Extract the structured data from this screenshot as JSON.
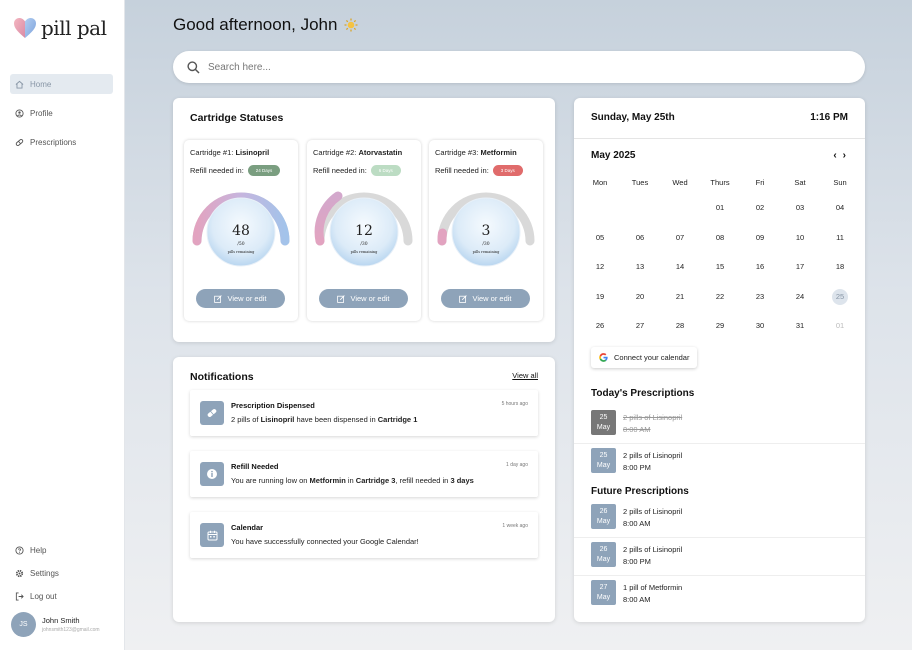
{
  "app": {
    "name": "pill pal"
  },
  "sidebar": {
    "items": [
      {
        "label": "Home",
        "icon": "home-icon"
      },
      {
        "label": "Profile",
        "icon": "profile-icon"
      },
      {
        "label": "Prescriptions",
        "icon": "pill-icon"
      }
    ],
    "bottom_items": [
      {
        "label": "Help",
        "icon": "help-icon"
      },
      {
        "label": "Settings",
        "icon": "gear-icon"
      },
      {
        "label": "Log out",
        "icon": "logout-icon"
      }
    ],
    "user": {
      "initials": "JS",
      "name": "John Smith",
      "email": "johnsmith123@gmail.com"
    }
  },
  "header": {
    "greeting": "Good afternoon, John",
    "icon": "sun-icon"
  },
  "search": {
    "placeholder": "Search here..."
  },
  "cartridges": {
    "title": "Cartridge Statuses",
    "items": [
      {
        "prefix": "Cartridge #1:",
        "name": "Lisinopril",
        "refill_label": "Refill needed in:",
        "refill_days": "24 Days",
        "badge_color": "#7a9e80",
        "remaining": "48",
        "total": "/50",
        "caption": "pills remaining",
        "button": "View or edit"
      },
      {
        "prefix": "Cartridge #2:",
        "name": "Atorvastatin",
        "refill_label": "Refill needed in:",
        "refill_days": "6 Days",
        "badge_color": "#bcdcc3",
        "remaining": "12",
        "total": "/30",
        "caption": "pills remaining",
        "button": "View or edit"
      },
      {
        "prefix": "Cartridge #3:",
        "name": "Metformin",
        "refill_label": "Refill needed in:",
        "refill_days": "3 Days",
        "badge_color": "#e06b6b",
        "remaining": "3",
        "total": "/30",
        "caption": "pills remaining",
        "button": "View or edit"
      }
    ]
  },
  "notifications": {
    "title": "Notifications",
    "view_all": "View all",
    "items": [
      {
        "title": "Prescription Dispensed",
        "time": "5 hours ago",
        "icon": "pill-icon",
        "t1": "2 pills of ",
        "b1": "Lisinopril",
        "t2": " have been dispensed in ",
        "b2": "Cartridge 1",
        "t3": "",
        "b3": ""
      },
      {
        "title": "Refill Needed",
        "time": "1 day ago",
        "icon": "info-icon",
        "t1": "You are running low on ",
        "b1": "Metformin",
        "t2": " in ",
        "b2": "Cartridge 3",
        "t3": ", refill needed in ",
        "b3": "3 days"
      },
      {
        "title": "Calendar",
        "time": "1 week ago",
        "icon": "calendar-icon",
        "t1": "You have successfully connected your Google Calendar!",
        "b1": "",
        "t2": "",
        "b2": "",
        "t3": "",
        "b3": ""
      }
    ]
  },
  "calendar": {
    "date": "Sunday, May 25th",
    "time": "1:16 PM",
    "month": "May 2025",
    "prev": "‹",
    "next": "›",
    "weekdays": [
      "Mon",
      "Tues",
      "Wed",
      "Thurs",
      "Fri",
      "Sat",
      "Sun"
    ],
    "days": [
      "",
      "",
      "",
      "01",
      "02",
      "03",
      "04",
      "05",
      "06",
      "07",
      "08",
      "09",
      "10",
      "11",
      "12",
      "13",
      "14",
      "15",
      "16",
      "17",
      "18",
      "19",
      "20",
      "21",
      "22",
      "23",
      "24",
      "25",
      "26",
      "27",
      "28",
      "29",
      "30",
      "31",
      "01"
    ],
    "today": "25",
    "connect_label": "Connect your calendar"
  },
  "todays_prescriptions": {
    "title": "Today's Prescriptions",
    "items": [
      {
        "day": "25",
        "month": "May",
        "name": "2 pills of Lisinopril",
        "time": "8:00 AM",
        "done": true
      },
      {
        "day": "25",
        "month": "May",
        "name": "2 pills of Lisinopril",
        "time": "8:00 PM",
        "done": false
      }
    ]
  },
  "future_prescriptions": {
    "title": "Future Prescriptions",
    "items": [
      {
        "day": "26",
        "month": "May",
        "name": "2 pills of Lisinopril",
        "time": "8:00 AM"
      },
      {
        "day": "26",
        "month": "May",
        "name": "2 pills of Lisinopril",
        "time": "8:00 PM"
      },
      {
        "day": "27",
        "month": "May",
        "name": "1 pill of Metformin",
        "time": "8:00 AM"
      }
    ]
  }
}
